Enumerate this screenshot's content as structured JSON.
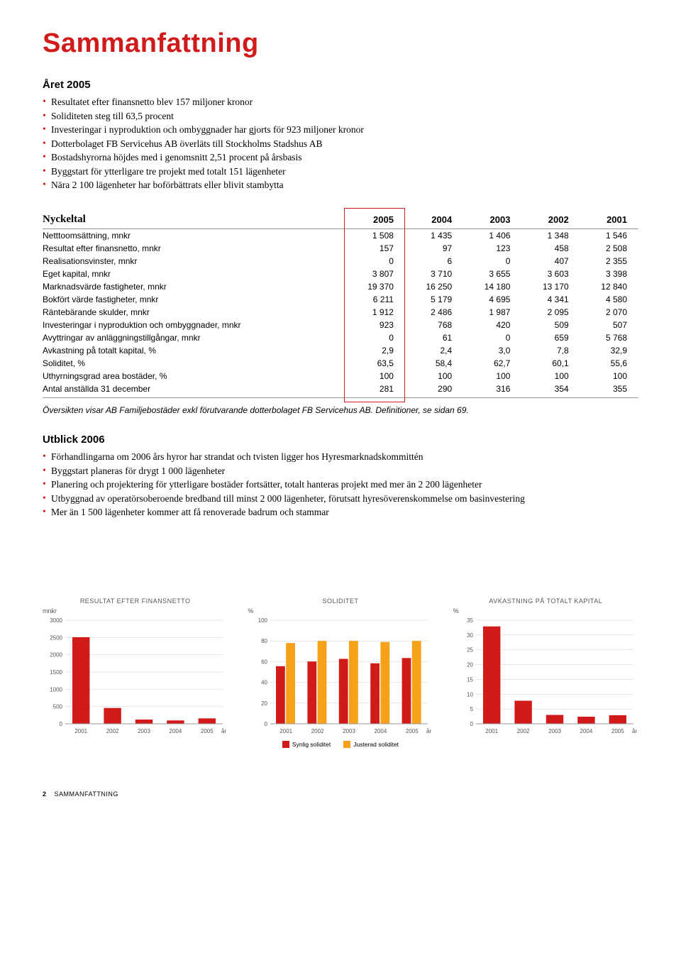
{
  "title": "Sammanfattning",
  "section1": {
    "heading": "Året 2005",
    "bullets": [
      "Resultatet efter finansnetto blev 157 miljoner kronor",
      "Soliditeten steg till 63,5 procent",
      "Investeringar i nyproduktion och ombyggnader har gjorts för 923 miljoner kronor",
      "Dotterbolaget FB Servicehus AB överläts till Stockholms Stadshus AB",
      "Bostadshyrorna höjdes med i genomsnitt 2,51 procent på årsbasis",
      "Byggstart för ytterligare tre projekt med totalt 151 lägenheter",
      "Nära 2 100 lägenheter har boförbättrats eller blivit stambytta"
    ]
  },
  "kpi": {
    "header_label": "Nyckeltal",
    "years": [
      "2005",
      "2004",
      "2003",
      "2002",
      "2001"
    ],
    "rows": [
      {
        "label": "Netttoomsättning, mnkr",
        "vals": [
          "1 508",
          "1 435",
          "1 406",
          "1 348",
          "1 546"
        ]
      },
      {
        "label": "Resultat efter finansnetto, mnkr",
        "vals": [
          "157",
          "97",
          "123",
          "458",
          "2 508"
        ]
      },
      {
        "label": "Realisationsvinster, mnkr",
        "vals": [
          "0",
          "6",
          "0",
          "407",
          "2 355"
        ]
      },
      {
        "label": "Eget kapital, mnkr",
        "vals": [
          "3 807",
          "3 710",
          "3 655",
          "3 603",
          "3 398"
        ]
      },
      {
        "label": "Marknadsvärde fastigheter, mnkr",
        "vals": [
          "19 370",
          "16 250",
          "14 180",
          "13 170",
          "12 840"
        ]
      },
      {
        "label": "Bokfört värde fastigheter, mnkr",
        "vals": [
          "6 211",
          "5 179",
          "4 695",
          "4 341",
          "4 580"
        ]
      },
      {
        "label": "Räntebärande skulder, mnkr",
        "vals": [
          "1 912",
          "2 486",
          "1 987",
          "2 095",
          "2 070"
        ]
      },
      {
        "label": "Investeringar i nyproduktion och ombyggnader, mnkr",
        "vals": [
          "923",
          "768",
          "420",
          "509",
          "507"
        ]
      },
      {
        "label": "Avyttringar av anläggningstillgångar, mnkr",
        "vals": [
          "0",
          "61",
          "0",
          "659",
          "5 768"
        ]
      },
      {
        "label": "Avkastning på totalt kapital, %",
        "vals": [
          "2,9",
          "2,4",
          "3,0",
          "7,8",
          "32,9"
        ]
      },
      {
        "label": "Soliditet, %",
        "vals": [
          "63,5",
          "58,4",
          "62,7",
          "60,1",
          "55,6"
        ]
      },
      {
        "label": "Uthyrningsgrad area bostäder, %",
        "vals": [
          "100",
          "100",
          "100",
          "100",
          "100"
        ]
      },
      {
        "label": "Antal anställda 31 december",
        "vals": [
          "281",
          "290",
          "316",
          "354",
          "355"
        ]
      }
    ],
    "highlight_col": 0,
    "footnote": "Översikten visar AB Familjebostäder exkl förutvarande dotterbolaget FB Servicehus AB. Definitioner, se sidan 69."
  },
  "section2": {
    "heading": "Utblick 2006",
    "bullets": [
      "Förhandlingarna om 2006 års hyror har strandat och tvisten ligger hos Hyresmarknadskommittén",
      "Byggstart planeras för drygt 1 000 lägenheter",
      "Planering och projektering för ytterligare bostäder fortsätter, totalt hanteras projekt med mer än 2 200 lägenheter",
      "Utbyggnad av operatörsoberoende bredband till minst 2 000 lägenheter, förutsatt hyresöverenskommelse om basinvestering",
      "Mer än 1 500 lägenheter kommer att få renoverade badrum och stammar"
    ]
  },
  "charts": {
    "colors": {
      "red": "#d11b1b",
      "orange": "#f7a11a",
      "grid": "#cccccc",
      "axis": "#999999",
      "text": "#555555",
      "bg": "#ffffff"
    },
    "chart1": {
      "title": "RESULTAT EFTER FINANSNETTO",
      "unit": "mnkr",
      "ylim": [
        0,
        3000
      ],
      "ytick_step": 500,
      "categories": [
        "2001",
        "2002",
        "2003",
        "2004",
        "2005"
      ],
      "xaxis_suffix": "år",
      "values": [
        2508,
        458,
        123,
        97,
        157
      ],
      "bar_color": "#d11b1b"
    },
    "chart2": {
      "title": "SOLIDITET",
      "unit": "%",
      "ylim": [
        0,
        100
      ],
      "ytick_step": 20,
      "categories": [
        "2001",
        "2002",
        "2003",
        "2004",
        "2005"
      ],
      "xaxis_suffix": "år",
      "series": [
        {
          "name": "Synlig soliditet",
          "color": "#d11b1b",
          "values": [
            55.6,
            60.1,
            62.7,
            58.4,
            63.5
          ]
        },
        {
          "name": "Justerad soliditet",
          "color": "#f7a11a",
          "values": [
            78,
            80,
            80,
            79,
            80
          ]
        }
      ]
    },
    "chart3": {
      "title": "AVKASTNING PÅ TOTALT KAPITAL",
      "unit": "%",
      "ylim": [
        0,
        35
      ],
      "ytick_step": 5,
      "categories": [
        "2001",
        "2002",
        "2003",
        "2004",
        "2005"
      ],
      "xaxis_suffix": "år",
      "values": [
        32.9,
        7.8,
        3.0,
        2.4,
        2.9
      ],
      "bar_color": "#d11b1b"
    }
  },
  "footer": {
    "page": "2",
    "label": "SAMMANFATTNING"
  }
}
